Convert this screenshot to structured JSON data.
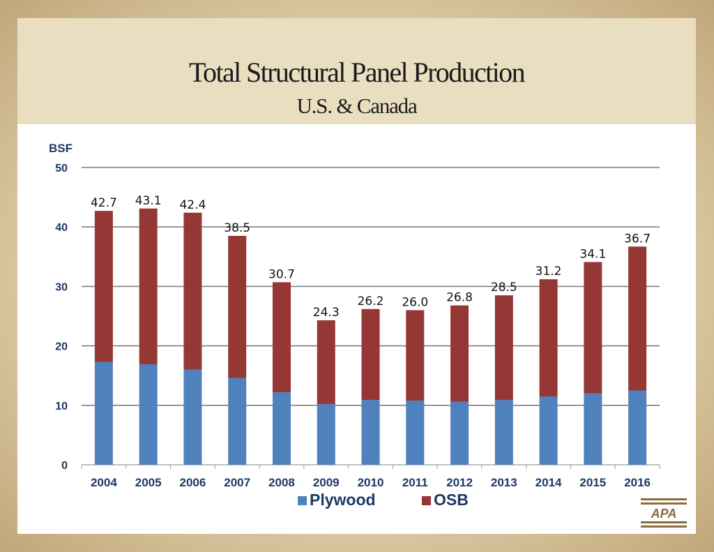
{
  "slide": {
    "title": "Total Structural Panel Production",
    "subtitle": "U.S. & Canada",
    "logo_text": "APA"
  },
  "chart_data": {
    "type": "bar",
    "stacked": true,
    "ylabel": "BSF",
    "ylim": [
      0,
      50
    ],
    "yticks": [
      0,
      10,
      20,
      30,
      40,
      50
    ],
    "grid": true,
    "legend_position": "bottom",
    "categories": [
      "2004",
      "2005",
      "2006",
      "2007",
      "2008",
      "2009",
      "2010",
      "2011",
      "2012",
      "2013",
      "2014",
      "2015",
      "2016"
    ],
    "series": [
      {
        "name": "Plywood",
        "color": "#4f81bd",
        "values": [
          17.3,
          16.9,
          16.0,
          14.6,
          12.2,
          10.2,
          10.9,
          10.8,
          10.6,
          10.9,
          11.5,
          12.0,
          12.5
        ]
      },
      {
        "name": "OSB",
        "color": "#953735",
        "values": [
          25.4,
          26.2,
          26.4,
          23.9,
          18.5,
          14.1,
          15.3,
          15.2,
          16.2,
          17.6,
          19.7,
          22.1,
          24.2
        ]
      }
    ],
    "totals": [
      "42.7",
      "43.1",
      "42.4",
      "38.5",
      "30.7",
      "24.3",
      "26.2",
      "26.0",
      "26.8",
      "28.5",
      "31.2",
      "34.1",
      "36.7"
    ]
  },
  "colors": {
    "title_band": "#e9dec0",
    "axis_label": "#1f3864",
    "gridline": "#7f7f7f",
    "logo": "#8c6a3a"
  }
}
